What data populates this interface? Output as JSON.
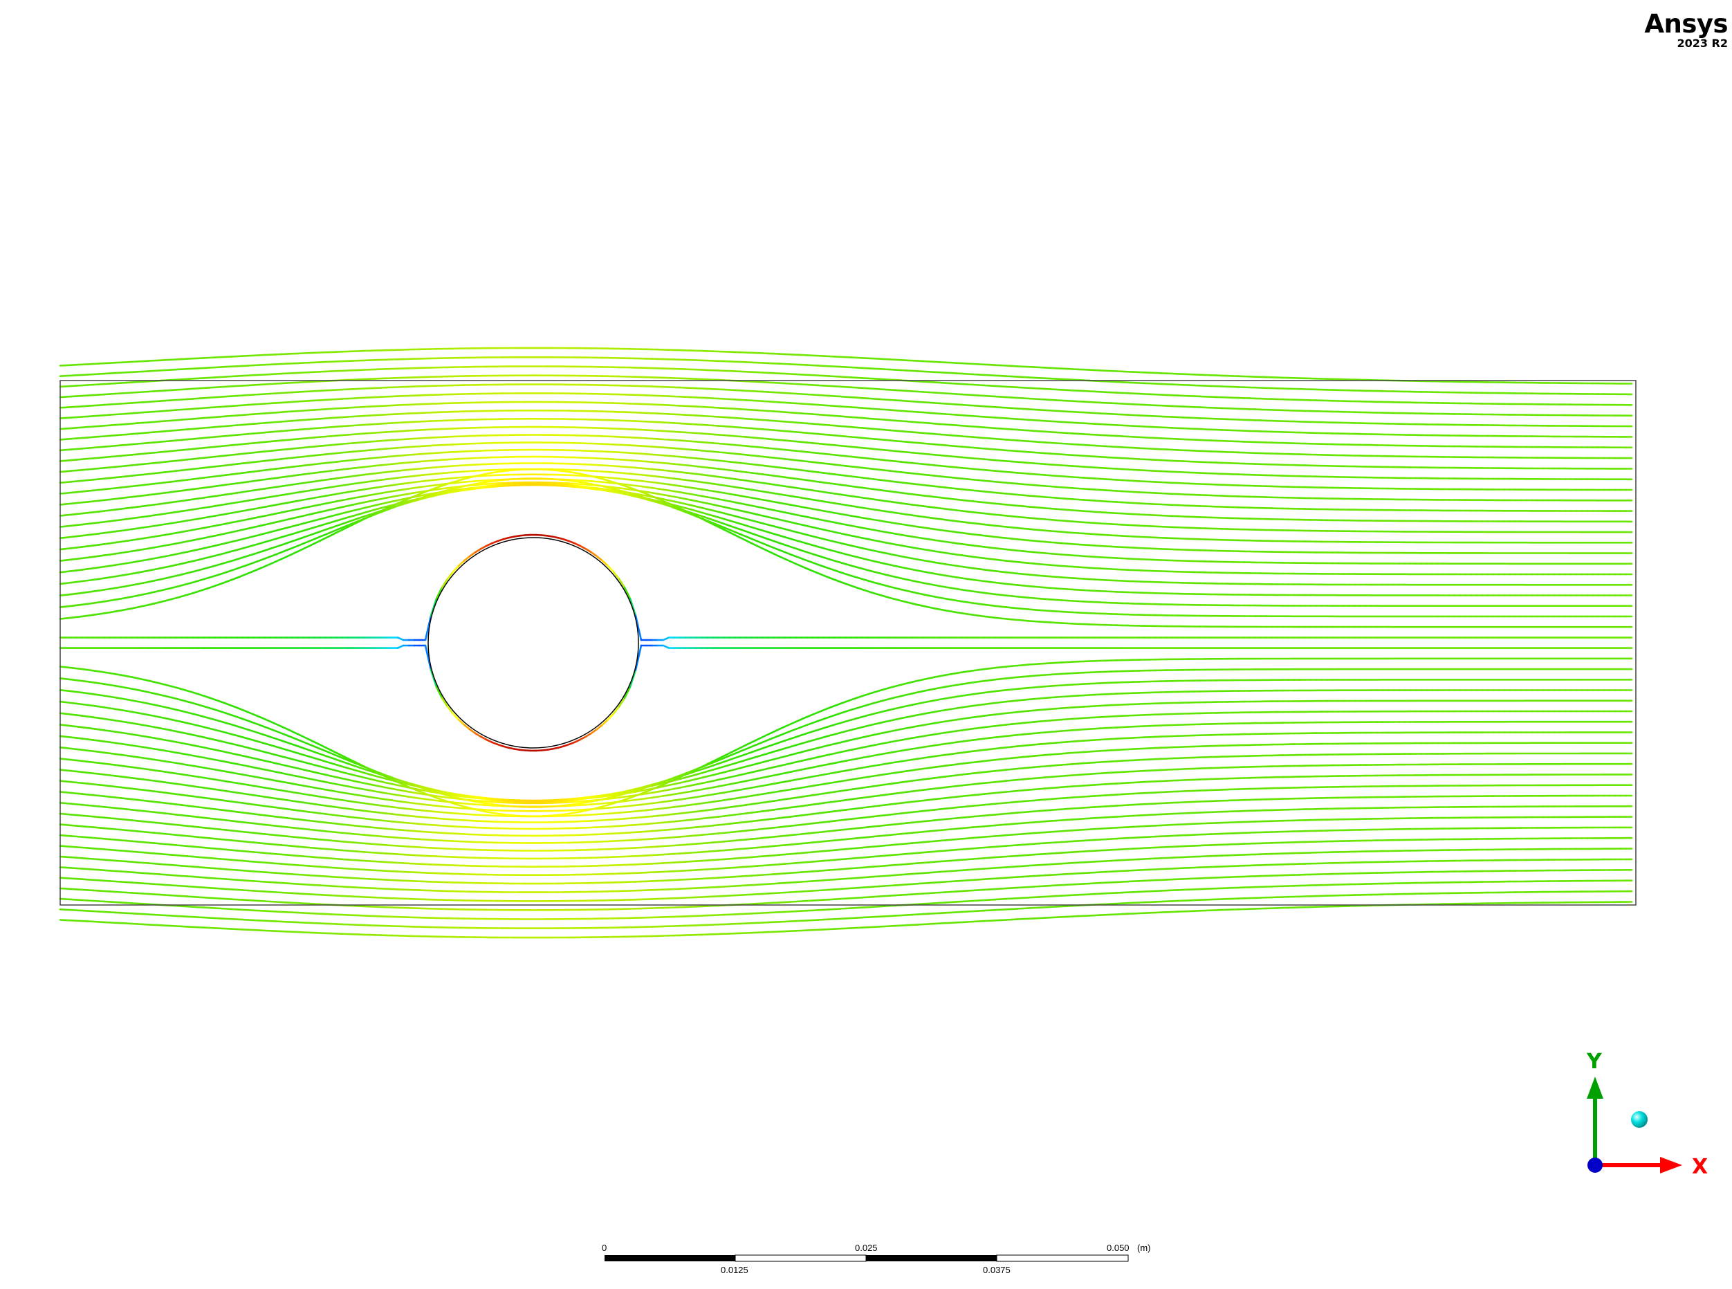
{
  "logo": {
    "brand": "Ansys",
    "version": "2023 R2"
  },
  "scale_bar": {
    "unit": "(m)",
    "top_labels": [
      "0",
      "0.025",
      "0.050"
    ],
    "bottom_labels": [
      "0.0125",
      "0.0375"
    ]
  },
  "triad": {
    "x_label": "X",
    "y_label": "Y",
    "x_color": "#ff0000",
    "y_color": "#00a000",
    "z_color": "#0000c8",
    "iso_color": "#00e0e0"
  },
  "colors": {
    "background": "#ffffff",
    "domain_border": "#444444",
    "cylinder_border": "#000000",
    "colormap": [
      "#0050ff",
      "#00d8ff",
      "#00e060",
      "#30e000",
      "#b8ee00",
      "#ffff00",
      "#ff9000",
      "#e02000",
      "#a00000"
    ]
  },
  "streamlines": {
    "count": 50,
    "cylinder_radius_fraction": 0.41
  }
}
